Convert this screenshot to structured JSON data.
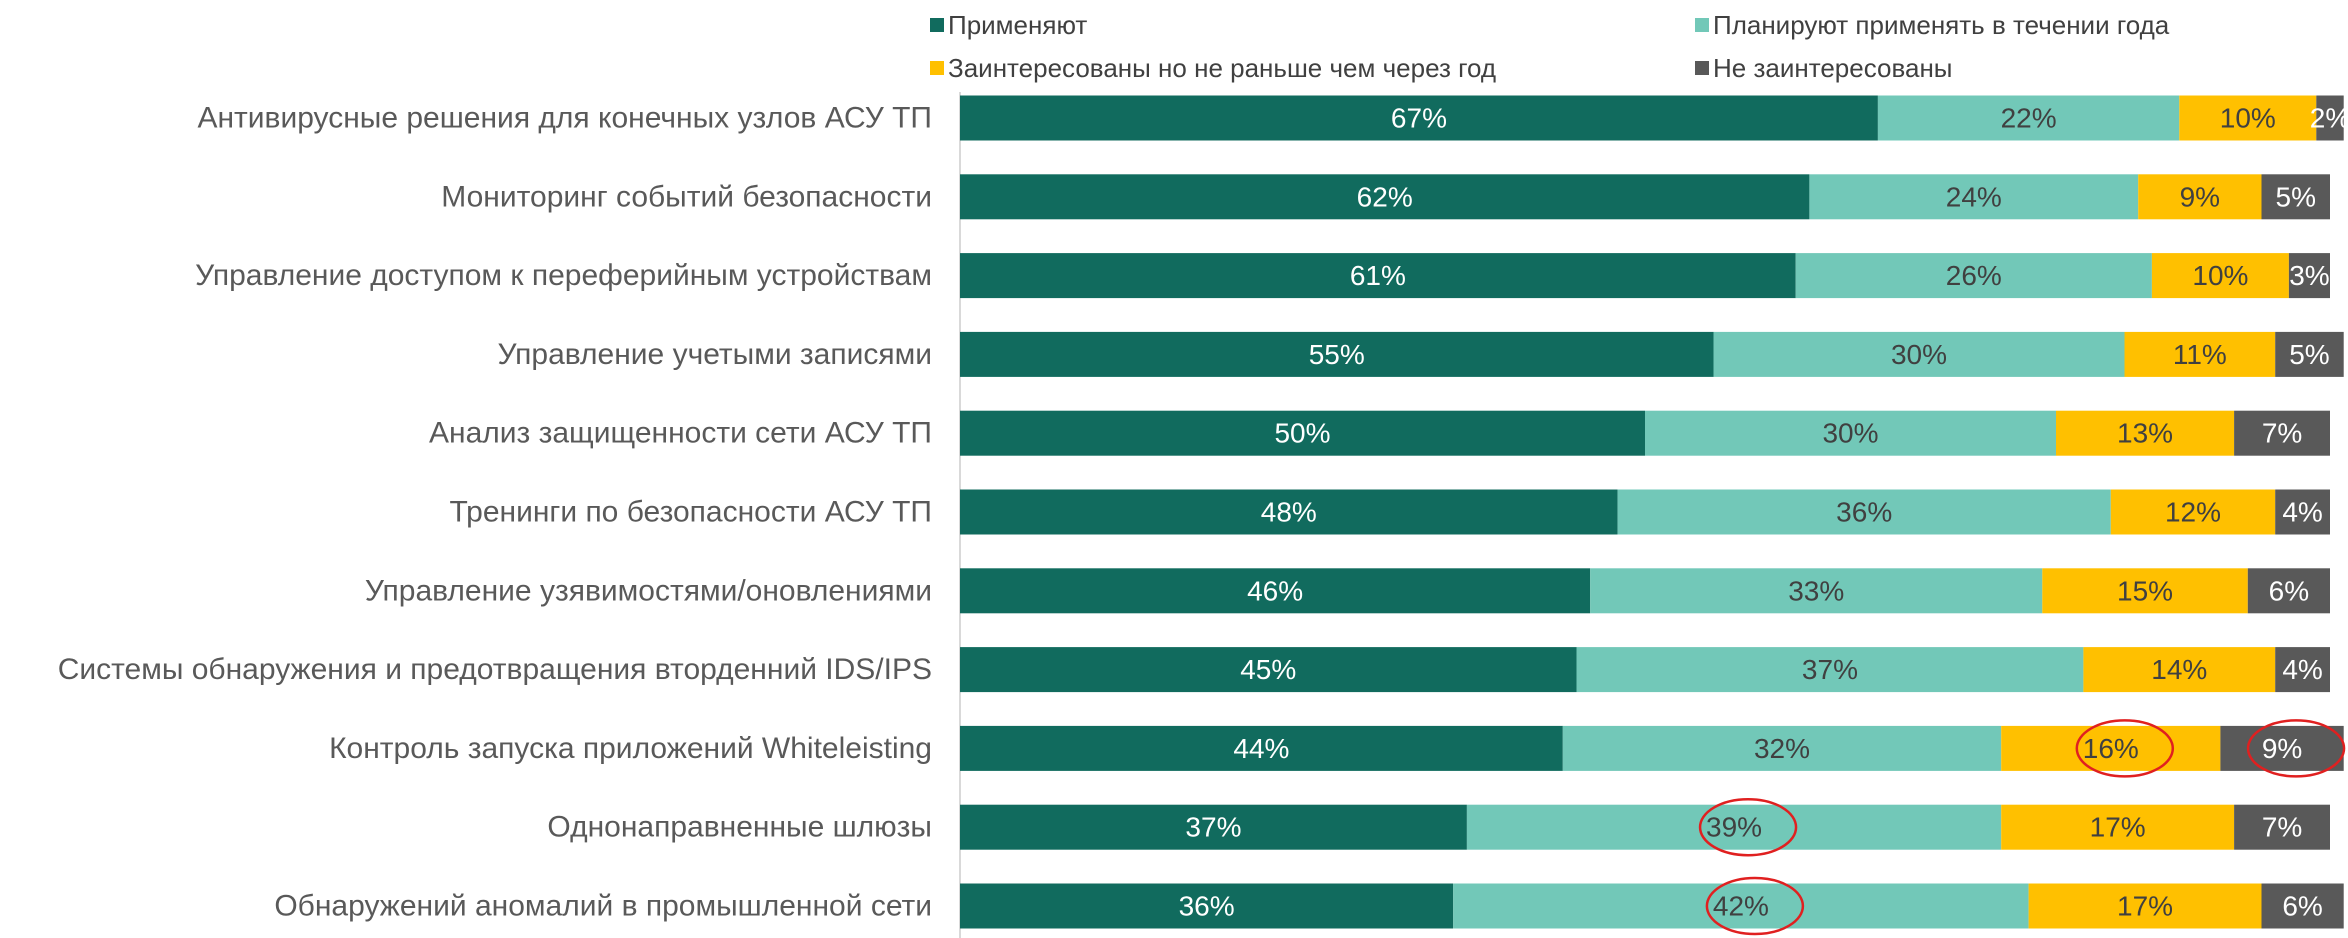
{
  "chart_data": {
    "type": "stacked_barh",
    "categories": [
      "Антивирусные решения для конечных узлов АСУ ТП",
      "Мониторинг событий безопасности",
      "Управление доступом к переферийным устройствам",
      "Управление учетыми записями",
      "Анализ защищенности сети АСУ ТП",
      "Тренинги по безопасности АСУ ТП",
      "Управление узявимостями/оновлениями",
      "Системы обнаружения и предотвращения вторденний IDS/IPS",
      "Контроль запуска приложений Whiteleisting",
      "Однонаправненные шлюзы",
      "Обнаружений аномалий в промышленной сети"
    ],
    "xlim": [
      0,
      100
    ],
    "series": [
      {
        "name": "Применяют",
        "color": "#116b5e",
        "values": [
          67,
          62,
          61,
          55,
          50,
          48,
          46,
          45,
          44,
          37,
          36
        ],
        "value_labels": [
          "67%",
          "62%",
          "61%",
          "55%",
          "50%",
          "48%",
          "46%",
          "45%",
          "44%",
          "37%",
          "36%"
        ]
      },
      {
        "name": "Планируют применять в течении года",
        "color": "#72c8b8",
        "values": [
          22,
          24,
          26,
          30,
          30,
          36,
          33,
          37,
          32,
          39,
          42
        ],
        "value_labels": [
          "22%",
          "24%",
          "26%",
          "30%",
          "30%",
          "36%",
          "33%",
          "37%",
          "32%",
          "39%",
          "42%"
        ]
      },
      {
        "name": "Заинтересованы но не раньше чем через год",
        "color": "#ffc000",
        "values": [
          10,
          9,
          10,
          11,
          13,
          12,
          15,
          14,
          16,
          17,
          17
        ],
        "value_labels": [
          "10%",
          "9%",
          "10%",
          "11%",
          "13%",
          "12%",
          "15%",
          "14%",
          "16%",
          "17%",
          "17%"
        ]
      },
      {
        "name": "Не заинтересованы",
        "color": "#595959",
        "values": [
          2,
          5,
          3,
          5,
          7,
          4,
          6,
          4,
          9,
          7,
          6
        ],
        "value_labels": [
          "2%",
          "5%",
          "3%",
          "5%",
          "7%",
          "4%",
          "6%",
          "4%",
          "9%",
          "7%",
          "6%"
        ]
      }
    ]
  }
}
